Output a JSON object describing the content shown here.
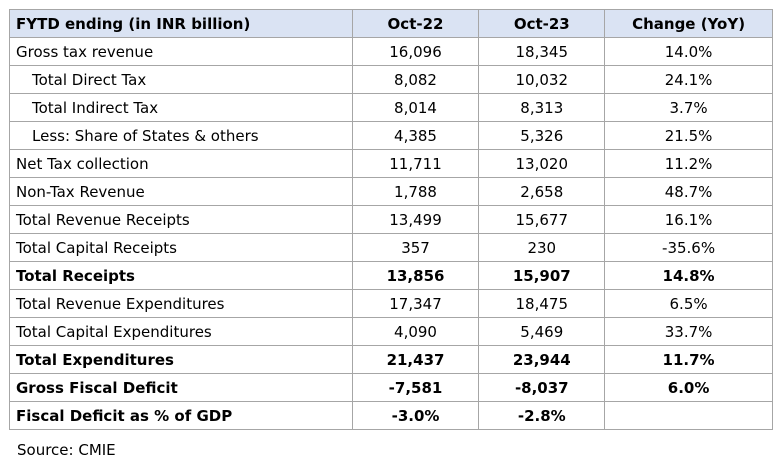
{
  "table": {
    "header": [
      "FYTD ending (in INR billion)",
      "Oct-22",
      "Oct-23",
      "Change (YoY)"
    ],
    "rows": [
      [
        "Gross tax revenue",
        "16,096",
        "18,345",
        "14.0%"
      ],
      [
        "Total Direct Tax",
        "8,082",
        "10,032",
        "24.1%"
      ],
      [
        "Total Indirect Tax",
        "8,014",
        "8,313",
        "3.7%"
      ],
      [
        "Less: Share of States & others",
        "4,385",
        "5,326",
        "21.5%"
      ],
      [
        "Net Tax collection",
        "11,711",
        "13,020",
        "11.2%"
      ],
      [
        "Non-Tax Revenue",
        "1,788",
        "2,658",
        "48.7%"
      ],
      [
        "Total Revenue Receipts",
        "13,499",
        "15,677",
        "16.1%"
      ],
      [
        "Total Capital Receipts",
        "357",
        "230",
        "-35.6%"
      ],
      [
        "Total Receipts",
        "13,856",
        "15,907",
        "14.8%"
      ],
      [
        "Total Revenue Expenditures",
        "17,347",
        "18,475",
        "6.5%"
      ],
      [
        "Total Capital Expenditures",
        "4,090",
        "5,469",
        "33.7%"
      ],
      [
        "Total Expenditures",
        "21,437",
        "23,944",
        "11.7%"
      ],
      [
        "Gross Fiscal Deficit",
        "-7,581",
        "-8,037",
        "6.0%"
      ],
      [
        "Fiscal Deficit as % of GDP",
        "-3.0%",
        "-2.8%"
      ]
    ]
  },
  "source": "Source: CMIE"
}
